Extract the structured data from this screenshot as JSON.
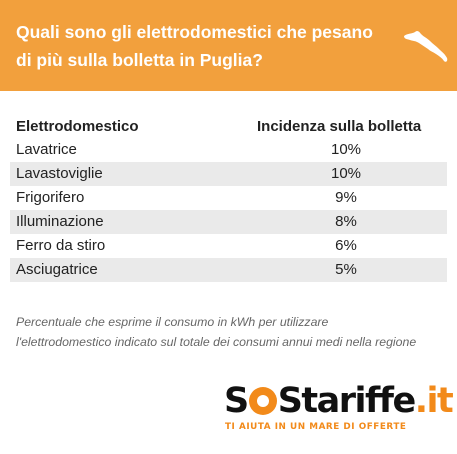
{
  "header": {
    "title_line1": "Quali sono gli elettrodomestici che pesano",
    "title_line2": "di più sulla bolletta in Puglia?",
    "icon": "puglia-map-icon"
  },
  "chart_data": {
    "type": "table",
    "columns": [
      "Elettrodomestico",
      "Incidenza sulla bolletta"
    ],
    "rows": [
      {
        "name": "Lavatrice",
        "value": "10%"
      },
      {
        "name": "Lavastoviglie",
        "value": "10%"
      },
      {
        "name": "Frigorifero",
        "value": "9%"
      },
      {
        "name": "Illuminazione",
        "value": "8%"
      },
      {
        "name": "Ferro da stiro",
        "value": "6%"
      },
      {
        "name": "Asciugatrice",
        "value": "5%"
      }
    ]
  },
  "note": "Percentuale che esprime il consumo in kWh per utilizzare l'elettrodomestico indicato sul totale dei consumi annui medi nella regione",
  "logo": {
    "text": "SOStariffe.it",
    "tagline": "TI AIUTA IN UN MARE DI OFFERTE"
  },
  "colors": {
    "header_bg": "#f2a03d",
    "row_shade": "#eaeaea",
    "brand_orange": "#f28a1a"
  }
}
